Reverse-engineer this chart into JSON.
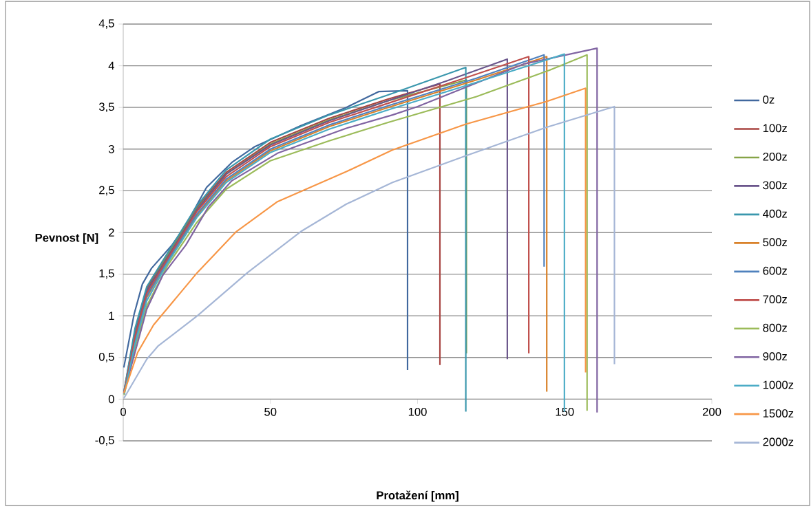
{
  "chart_data": {
    "type": "line",
    "xlabel": "Protažení [mm]",
    "ylabel": "Pevnost [N]",
    "xlim": [
      0,
      200
    ],
    "ylim": [
      -0.5,
      4.5
    ],
    "xticks": [
      0,
      50,
      100,
      150,
      200
    ],
    "yticks": [
      {
        "value": -0.5,
        "label": "-0,5"
      },
      0,
      {
        "value": 0.5,
        "label": "0,5"
      },
      1,
      {
        "value": 1.5,
        "label": "1,5"
      },
      2,
      {
        "value": 2.5,
        "label": "2,5"
      },
      3,
      {
        "value": 3.5,
        "label": "3,5"
      },
      4,
      {
        "value": 4.5,
        "label": "4,5"
      }
    ],
    "grid": "y",
    "legend": "right",
    "series": [
      {
        "name": "0z",
        "color": "#41689e",
        "x": [
          0.2,
          3.7,
          6.5,
          9.6,
          16.6,
          21.3,
          28.3,
          36.9,
          44.7,
          60.3,
          75.8,
          86.8,
          96.6,
          96.6
        ],
        "values": [
          0.38,
          1.02,
          1.38,
          1.57,
          1.85,
          2.09,
          2.54,
          2.84,
          3.03,
          3.28,
          3.5,
          3.69,
          3.7,
          0.35
        ]
      },
      {
        "name": "100z",
        "color": "#a84441",
        "x": [
          0.3,
          4,
          8,
          15,
          25,
          35,
          50,
          70,
          90,
          107.6,
          107.6
        ],
        "values": [
          0.1,
          0.82,
          1.33,
          1.73,
          2.3,
          2.72,
          3.08,
          3.37,
          3.6,
          3.78,
          0.41
        ]
      },
      {
        "name": "200z",
        "color": "#86a447",
        "x": [
          0.3,
          4,
          8,
          15,
          25,
          35,
          50,
          70,
          90,
          116.6,
          116.6
        ],
        "values": [
          0.08,
          0.8,
          1.3,
          1.72,
          2.28,
          2.7,
          3.06,
          3.35,
          3.58,
          3.83,
          0.55
        ]
      },
      {
        "name": "300z",
        "color": "#6a558b",
        "x": [
          0.3,
          4,
          8,
          15,
          25,
          35,
          50,
          70,
          90,
          110,
          130.5,
          130.5
        ],
        "values": [
          0.08,
          0.78,
          1.3,
          1.7,
          2.27,
          2.7,
          3.05,
          3.34,
          3.58,
          3.82,
          4.08,
          0.48
        ]
      },
      {
        "name": "400z",
        "color": "#3a97ad",
        "x": [
          0.3,
          4,
          8,
          15,
          25,
          35,
          50,
          70,
          90,
          116.4,
          116.4
        ],
        "values": [
          0.1,
          0.85,
          1.35,
          1.75,
          2.32,
          2.75,
          3.12,
          3.41,
          3.65,
          3.98,
          -0.15
        ]
      },
      {
        "name": "500z",
        "color": "#d9822b",
        "x": [
          0.3,
          4,
          8,
          15,
          25,
          35,
          50,
          70,
          90,
          120,
          143.9,
          143.9
        ],
        "values": [
          0.07,
          0.7,
          1.22,
          1.65,
          2.2,
          2.62,
          2.98,
          3.27,
          3.5,
          3.83,
          4.11,
          0.09
        ]
      },
      {
        "name": "600z",
        "color": "#4f81bd",
        "x": [
          0.3,
          4,
          8,
          15,
          25,
          35,
          50,
          70,
          90,
          120,
          143,
          143
        ],
        "values": [
          0.07,
          0.72,
          1.24,
          1.66,
          2.22,
          2.64,
          3.0,
          3.29,
          3.52,
          3.85,
          4.13,
          1.59
        ]
      },
      {
        "name": "700z",
        "color": "#c0504d",
        "x": [
          0.3,
          4,
          8,
          15,
          25,
          35,
          50,
          70,
          90,
          115,
          137.8,
          137.8
        ],
        "values": [
          0.08,
          0.75,
          1.27,
          1.68,
          2.25,
          2.67,
          3.03,
          3.32,
          3.55,
          3.84,
          4.11,
          0.55
        ]
      },
      {
        "name": "800z",
        "color": "#9bbb59",
        "x": [
          0.3,
          4,
          8,
          15,
          25,
          35,
          50,
          70,
          90,
          120,
          145,
          157.6,
          157.6
        ],
        "values": [
          0.05,
          0.62,
          1.12,
          1.6,
          2.12,
          2.52,
          2.86,
          3.1,
          3.32,
          3.63,
          3.95,
          4.13,
          -0.14
        ]
      },
      {
        "name": "900z",
        "color": "#8064a2",
        "x": [
          0.2,
          8,
          13.5,
          21.3,
          29,
          36.9,
          52.4,
          75.8,
          91.5,
          100,
          136,
          161,
          161
        ],
        "values": [
          0.07,
          1.08,
          1.49,
          1.85,
          2.31,
          2.62,
          2.95,
          3.25,
          3.41,
          3.51,
          4.02,
          4.21,
          -0.16
        ]
      },
      {
        "name": "1000z",
        "color": "#4bacc6",
        "x": [
          0.3,
          4,
          8,
          15,
          25,
          35,
          50,
          70,
          90,
          120,
          149.9,
          149.9
        ],
        "values": [
          0.06,
          0.66,
          1.18,
          1.63,
          2.18,
          2.6,
          2.96,
          3.24,
          3.47,
          3.8,
          4.14,
          -0.15
        ]
      },
      {
        "name": "1500z",
        "color": "#f79646",
        "x": [
          0.2,
          4.9,
          10.3,
          25.2,
          38.4,
          52.4,
          75.8,
          91.5,
          116.4,
          143.7,
          157.1,
          157.1
        ],
        "values": [
          0.07,
          0.56,
          0.89,
          1.52,
          2.01,
          2.37,
          2.73,
          2.99,
          3.3,
          3.57,
          3.73,
          0.32
        ]
      },
      {
        "name": "2000z",
        "color": "#a5b6d6",
        "x": [
          0.2,
          8,
          11.9,
          25.2,
          42.3,
          60.3,
          75.8,
          91.5,
          116.4,
          143.7,
          166.9,
          166.9
        ],
        "values": [
          0.01,
          0.48,
          0.64,
          1.0,
          1.52,
          2.01,
          2.34,
          2.6,
          2.92,
          3.26,
          3.51,
          0.42
        ]
      }
    ]
  }
}
